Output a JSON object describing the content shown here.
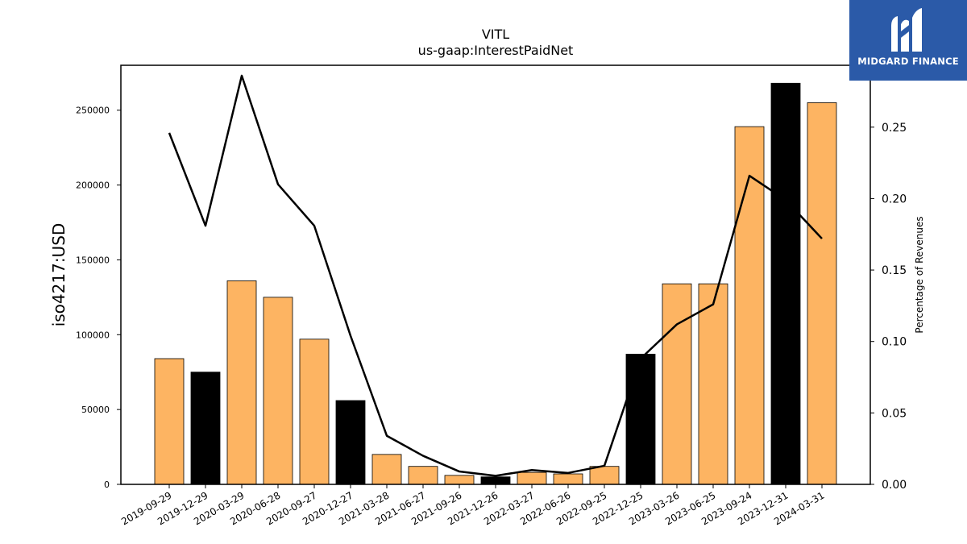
{
  "logo": {
    "text": "MIDGARD FINANCE"
  },
  "chart_data": {
    "type": "bar",
    "title": "VITL",
    "subtitle": "us-gaap:InterestPaidNet",
    "ylabel": "iso4217:USD",
    "y2label": "Percentage of Revenues",
    "categories": [
      "2019-09-29",
      "2019-12-29",
      "2020-03-29",
      "2020-06-28",
      "2020-09-27",
      "2020-12-27",
      "2021-03-28",
      "2021-06-27",
      "2021-09-26",
      "2021-12-26",
      "2022-03-27",
      "2022-06-26",
      "2022-09-25",
      "2022-12-25",
      "2023-03-26",
      "2023-06-25",
      "2023-09-24",
      "2023-12-31",
      "2024-03-31"
    ],
    "values": [
      84000,
      75000,
      136000,
      125000,
      97000,
      56000,
      20000,
      12000,
      6000,
      5000,
      8000,
      7000,
      12000,
      87000,
      134000,
      134000,
      239000,
      268000,
      255000
    ],
    "bar_colors": [
      "#fdb462",
      "#000000",
      "#fdb462",
      "#fdb462",
      "#fdb462",
      "#000000",
      "#fdb462",
      "#fdb462",
      "#fdb462",
      "#000000",
      "#fdb462",
      "#fdb462",
      "#fdb462",
      "#000000",
      "#fdb462",
      "#fdb462",
      "#fdb462",
      "#000000",
      "#fdb462"
    ],
    "line_values": [
      0.246,
      0.181,
      0.286,
      0.21,
      0.181,
      0.104,
      0.034,
      0.02,
      0.009,
      0.006,
      0.01,
      0.008,
      0.013,
      0.088,
      0.112,
      0.126,
      0.216,
      0.199,
      0.172
    ],
    "line_color": "#000000",
    "ylim": [
      0,
      280000
    ],
    "y2lim": [
      0,
      0.2933
    ],
    "yticks": [
      0,
      50000,
      100000,
      150000,
      200000,
      250000
    ],
    "yticklabels": [
      "0",
      "50000",
      "100000",
      "150000",
      "200000",
      "250000"
    ],
    "y2ticks": [
      0,
      0.05,
      0.1,
      0.15,
      0.2,
      0.25
    ],
    "y2ticklabels": [
      "0.00",
      "0.05",
      "0.10",
      "0.15",
      "0.20",
      "0.25"
    ],
    "grid": false
  }
}
